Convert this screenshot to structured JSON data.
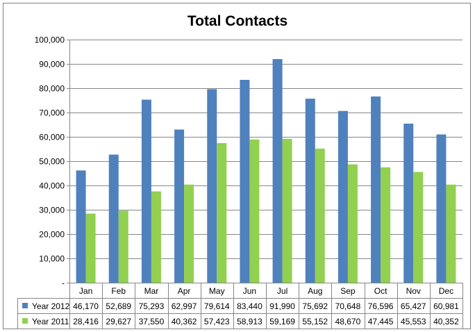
{
  "chart_data": {
    "type": "bar",
    "title": "Total Contacts",
    "categories": [
      "Jan",
      "Feb",
      "Mar",
      "Apr",
      "May",
      "Jun",
      "Jul",
      "Aug",
      "Sep",
      "Oct",
      "Nov",
      "Dec"
    ],
    "series": [
      {
        "name": "Year 2012",
        "color": "#4f81bd",
        "values": [
          46170,
          52689,
          75293,
          62997,
          79614,
          83440,
          91990,
          75692,
          70648,
          76596,
          65427,
          60981
        ],
        "value_labels": [
          "46,170",
          "52,689",
          "75,293",
          "62,997",
          "79,614",
          "83,440",
          "91,990",
          "75,692",
          "70,648",
          "76,596",
          "65,427",
          "60,981"
        ]
      },
      {
        "name": "Year 2011",
        "color": "#92d050",
        "values": [
          28416,
          29627,
          37550,
          40362,
          57423,
          58913,
          59169,
          55152,
          48670,
          47445,
          45553,
          40352
        ],
        "value_labels": [
          "28,416",
          "29,627",
          "37,550",
          "40,362",
          "57,423",
          "58,913",
          "59,169",
          "55,152",
          "48,670",
          "47,445",
          "45,553",
          "40,352"
        ]
      }
    ],
    "y_ticks": [
      0,
      10000,
      20000,
      30000,
      40000,
      50000,
      60000,
      70000,
      80000,
      90000,
      100000
    ],
    "y_tick_labels": [
      "-",
      "10,000",
      "20,000",
      "30,000",
      "40,000",
      "50,000",
      "60,000",
      "70,000",
      "80,000",
      "90,000",
      "100,000"
    ],
    "ylim": [
      0,
      100000
    ],
    "grid": true,
    "legend": "data-table-left",
    "gridline_color": "#868686",
    "axis_color": "#868686"
  }
}
